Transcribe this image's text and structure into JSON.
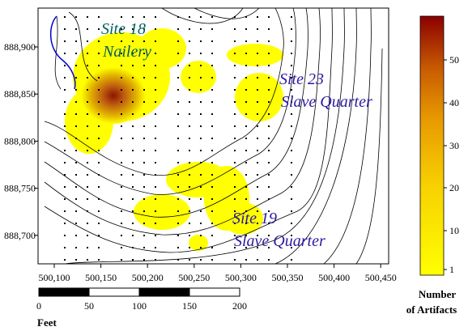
{
  "map": {
    "x_ticks": [
      "500,100",
      "500,150",
      "500,200",
      "500,250",
      "500,300",
      "500,350",
      "500,400",
      "500,450"
    ],
    "y_ticks": [
      "888,900",
      "888,850",
      "888,800",
      "888,750",
      "888,700"
    ],
    "sites": [
      {
        "name": "Site 18",
        "use": "Nailery"
      },
      {
        "name": "Site 23",
        "use": "Slave Quarter"
      },
      {
        "name": "Site 19",
        "use": "Slave Quarter"
      }
    ],
    "legend": {
      "title_line1": "Number",
      "title_line2": "of Artifacts",
      "ticks": [
        "50",
        "40",
        "30",
        "20",
        "10",
        "1"
      ]
    },
    "scale_bar": {
      "ticks": [
        "0",
        "50",
        "100",
        "150",
        "200"
      ],
      "unit": "Feet"
    }
  }
}
